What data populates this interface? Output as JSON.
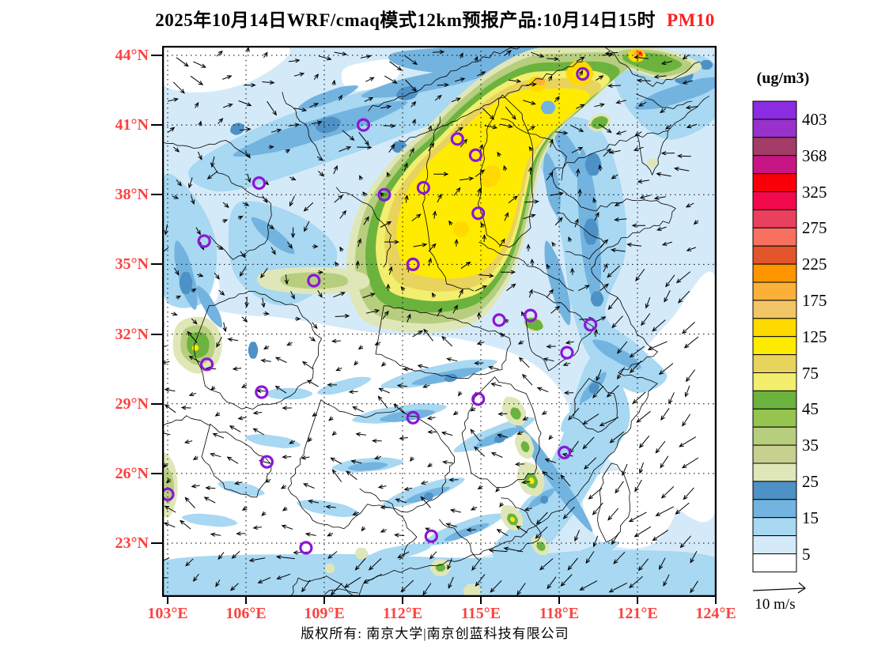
{
  "title": {
    "prefix": "2025年10月14日WRF/cmaq模式12km预报产品:10月14日15时",
    "pollutant": "PM10",
    "pollutant_color": "#FF1F1F"
  },
  "axes": {
    "lat_labels": [
      "44°N",
      "41°N",
      "38°N",
      "35°N",
      "32°N",
      "29°N",
      "26°N",
      "23°N"
    ],
    "lon_labels": [
      "103°E",
      "106°E",
      "109°E",
      "112°E",
      "115°E",
      "118°E",
      "121°E",
      "124°E"
    ],
    "label_color": "#FB4340"
  },
  "legend": {
    "units_label": "(ug/m3)",
    "values": [
      "403",
      "368",
      "325",
      "275",
      "225",
      "175",
      "125",
      "75",
      "45",
      "35",
      "25",
      "15",
      "5"
    ],
    "cells_top_to_bottom": [
      "#8B2BE2",
      "#9932CC",
      "#A33C66",
      "#C71585",
      "#F80009",
      "#F2094C",
      "#E8405E",
      "#F87060",
      "#E2552A",
      "#FF9600",
      "#FBB03A",
      "#F2C567",
      "#FFD900",
      "#FFEB00",
      "#E8D35C",
      "#F2EE6E",
      "#6CB33E",
      "#95C44F",
      "#B6CE7E",
      "#C9CF8E",
      "#DFE7B8",
      "#4E91C6",
      "#73B3DF",
      "#A8D8F2",
      "#D5EAF9",
      "#FFFFFF"
    ]
  },
  "wind_scale": {
    "label": "10 m/s"
  },
  "footer": {
    "copyright": "版权所有: 南京大学|南京创蓝科技有限公司"
  },
  "chart_data": {
    "type": "heatmap",
    "subtype": "filled_contour_air_quality_forecast_map_with_wind_vectors",
    "title": "2025年10月14日WRF/cmaq模式12km预报产品:10月14日15时 PM10",
    "model": "WRF/cmaq 12km",
    "pollutant": "PM10",
    "units": "ug/m3",
    "issue_date_label": "2025年10月14日",
    "valid_time_label": "10月14日15时",
    "lon_ticks": [
      103,
      106,
      109,
      112,
      115,
      118,
      121,
      124
    ],
    "lat_ticks": [
      23,
      26,
      29,
      32,
      35,
      38,
      41,
      44
    ],
    "lon_range_approx": [
      102.8,
      124.0
    ],
    "lat_range_approx": [
      20.8,
      44.4
    ],
    "grid_lines": "dotted, every 3 degrees",
    "legend_position": "right",
    "concentration_levels": [
      5,
      15,
      25,
      35,
      45,
      75,
      125,
      175,
      225,
      275,
      325,
      368,
      403
    ],
    "palette_low_to_high": [
      "#FFFFFF",
      "#D5EAF9",
      "#A8D8F2",
      "#73B3DF",
      "#4E91C6",
      "#DFE7B8",
      "#C9CF8E",
      "#B6CE7E",
      "#95C44F",
      "#6CB33E",
      "#F2EE6E",
      "#E8D35C",
      "#FFEB00",
      "#FFD900",
      "#F2C567",
      "#FBB03A",
      "#FF9600",
      "#E2552A",
      "#F87060",
      "#E8405E",
      "#F2094C",
      "#F80009",
      "#C71585",
      "#A33C66",
      "#9932CC",
      "#8B2BE2"
    ],
    "features": [
      {
        "name": "north_china_pm10_plume",
        "approx_extent_lon": [
          110,
          120.5
        ],
        "approx_extent_lat": [
          33,
          44
        ],
        "peak_range_ugm3": "75-175",
        "description": "大片黄绿色高浓度带,山西-河北-河南-山东一线,东北-西南走向"
      },
      {
        "name": "northeast_hotspot_ring",
        "lon": 118.9,
        "lat": 43.2,
        "peak_range_ugm3": "125-225"
      },
      {
        "name": "small_red_peak",
        "lon": 121.1,
        "lat": 43.9,
        "peak_range_ugm3": "275-325"
      },
      {
        "name": "sichuan_basin_spot",
        "lon": 104.3,
        "lat": 31.8,
        "peak_range_ugm3": "45-125"
      },
      {
        "name": "qinling_band",
        "lon_range": [
          107,
          111
        ],
        "lat": 34.2,
        "peak_range_ugm3": "35-75"
      },
      {
        "name": "southeast_coastal_spots",
        "lon_range": [
          113,
          120
        ],
        "lat_range": [
          22,
          30
        ],
        "peak_range_ugm3": "35-125"
      },
      {
        "name": "clean_sea_and_southern_inland",
        "range_ugm3": "0-15"
      }
    ],
    "city_markers_lon_lat": [
      [
        110.5,
        41.0
      ],
      [
        106.5,
        38.5
      ],
      [
        111.3,
        38.0
      ],
      [
        112.8,
        38.3
      ],
      [
        104.4,
        36.0
      ],
      [
        108.6,
        34.3
      ],
      [
        112.4,
        35.0
      ],
      [
        118.9,
        43.2
      ],
      [
        114.1,
        40.4
      ],
      [
        114.8,
        39.7
      ],
      [
        114.9,
        37.2
      ],
      [
        116.9,
        32.8
      ],
      [
        115.7,
        32.6
      ],
      [
        104.5,
        30.7
      ],
      [
        106.6,
        29.5
      ],
      [
        106.8,
        26.5
      ],
      [
        103.0,
        25.1
      ],
      [
        108.3,
        22.8
      ],
      [
        119.2,
        32.4
      ],
      [
        118.3,
        31.2
      ],
      [
        114.9,
        29.2
      ],
      [
        118.2,
        26.9
      ],
      [
        112.4,
        28.4
      ],
      [
        113.1,
        23.3
      ]
    ],
    "marker_color": "#8B16D8",
    "wind_vectors": {
      "reference_label": "10 m/s",
      "regimes": [
        {
          "area": "north_of_40N",
          "arrows_point": "E to NE"
        },
        {
          "area": "north_china_plain_plume",
          "arrows_point": "N to NE"
        },
        {
          "area": "northwest_inland",
          "arrows_point": "SE to S"
        },
        {
          "area": "southern_inland",
          "arrows_point": "W to WNW"
        },
        {
          "area": "east_china_sea_and_taiwan_strait",
          "arrows_point": "SW",
          "strength": "strong (~10 m/s)"
        }
      ]
    }
  }
}
